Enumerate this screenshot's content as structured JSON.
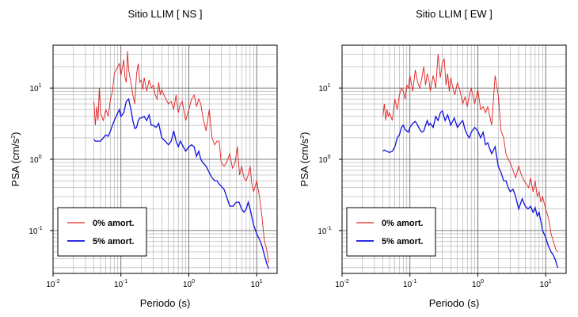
{
  "chart_data": [
    {
      "type": "line",
      "title": "Sitio LLIM [ NS ]",
      "xlabel": "Periodo (s)",
      "ylabel_base": "PSA (cm/s",
      "ylabel_exp": "2",
      "ylabel_close": ")",
      "x_scale": "log",
      "y_scale": "log",
      "xlim": [
        0.01,
        20
      ],
      "ylim": [
        0.025,
        40
      ],
      "grid": true,
      "legend_position": "bottom-left",
      "x_ticks": [
        {
          "base": "10",
          "exp": "-2",
          "value": 0.01
        },
        {
          "base": "10",
          "exp": "-1",
          "value": 0.1
        },
        {
          "base": "10",
          "exp": "0",
          "value": 1
        },
        {
          "base": "10",
          "exp": "1",
          "value": 10
        }
      ],
      "y_ticks": [
        {
          "base": "10",
          "exp": "-1",
          "value": 0.1
        },
        {
          "base": "10",
          "exp": "0",
          "value": 1
        },
        {
          "base": "10",
          "exp": "1",
          "value": 10
        }
      ],
      "series": [
        {
          "name": "0% amort.",
          "color": "#e02020",
          "x": [
            0.04,
            0.042,
            0.044,
            0.046,
            0.048,
            0.05,
            0.055,
            0.06,
            0.065,
            0.07,
            0.075,
            0.08,
            0.085,
            0.09,
            0.095,
            0.1,
            0.105,
            0.11,
            0.115,
            0.12,
            0.125,
            0.13,
            0.14,
            0.15,
            0.16,
            0.17,
            0.18,
            0.19,
            0.2,
            0.21,
            0.22,
            0.24,
            0.26,
            0.28,
            0.3,
            0.32,
            0.34,
            0.36,
            0.38,
            0.4,
            0.43,
            0.46,
            0.5,
            0.55,
            0.6,
            0.65,
            0.7,
            0.75,
            0.8,
            0.9,
            1.0,
            1.1,
            1.2,
            1.3,
            1.4,
            1.5,
            1.6,
            1.8,
            2.0,
            2.2,
            2.4,
            2.6,
            2.8,
            3.0,
            3.3,
            3.6,
            4.0,
            4.4,
            4.8,
            5.2,
            5.6,
            6.0,
            6.5,
            7.0,
            7.5,
            8.0,
            8.5,
            9.0,
            10,
            11,
            12,
            13,
            14,
            15
          ],
          "y": [
            6.5,
            3.0,
            5.5,
            3.5,
            10,
            4.5,
            3.5,
            5,
            4,
            7,
            9,
            16,
            18,
            20,
            22,
            15,
            19,
            25,
            14,
            12,
            33,
            18,
            12,
            8,
            6,
            16,
            22,
            12,
            13,
            9.5,
            14,
            9,
            13,
            10,
            11,
            8,
            7,
            12,
            8,
            9.5,
            8,
            7,
            6,
            6.5,
            5,
            8,
            4.5,
            6,
            6.5,
            3.5,
            5,
            7,
            8,
            5.5,
            7,
            6,
            4,
            2.5,
            5,
            2,
            1.6,
            1.8,
            1.8,
            0.9,
            0.8,
            0.9,
            1.2,
            0.75,
            0.9,
            1.5,
            0.6,
            0.8,
            0.55,
            0.5,
            0.6,
            0.8,
            0.45,
            0.35,
            0.5,
            0.3,
            0.15,
            0.07,
            0.055,
            0.035
          ]
        },
        {
          "name": "5% amort.",
          "color": "#1010e0",
          "x": [
            0.04,
            0.042,
            0.045,
            0.05,
            0.055,
            0.06,
            0.065,
            0.07,
            0.075,
            0.08,
            0.085,
            0.09,
            0.095,
            0.1,
            0.11,
            0.12,
            0.13,
            0.14,
            0.15,
            0.16,
            0.17,
            0.18,
            0.19,
            0.2,
            0.22,
            0.24,
            0.26,
            0.28,
            0.3,
            0.33,
            0.36,
            0.4,
            0.45,
            0.5,
            0.55,
            0.6,
            0.65,
            0.7,
            0.75,
            0.8,
            0.9,
            1.0,
            1.1,
            1.2,
            1.3,
            1.4,
            1.5,
            1.6,
            1.8,
            2.0,
            2.2,
            2.4,
            2.6,
            2.8,
            3.0,
            3.3,
            3.6,
            4.0,
            4.5,
            5.0,
            5.5,
            6.0,
            6.5,
            7.0,
            7.5,
            8.0,
            9.0,
            10,
            11,
            12,
            13,
            14,
            15
          ],
          "y": [
            1.9,
            1.8,
            1.8,
            1.8,
            2.0,
            2.2,
            2.1,
            2.5,
            3.0,
            3.5,
            4.0,
            4.5,
            5.0,
            4.0,
            4.5,
            6.5,
            7.0,
            5.0,
            3.5,
            2.7,
            2.8,
            3.5,
            3.8,
            3.8,
            4.0,
            3.5,
            4.2,
            3.0,
            3.0,
            2.8,
            3.2,
            2.0,
            1.8,
            1.6,
            1.8,
            2.5,
            1.8,
            1.5,
            1.8,
            1.6,
            1.3,
            1.5,
            1.6,
            1.5,
            1.1,
            1.3,
            1.0,
            0.9,
            0.8,
            0.65,
            0.55,
            0.5,
            0.5,
            0.45,
            0.42,
            0.38,
            0.3,
            0.22,
            0.22,
            0.25,
            0.25,
            0.2,
            0.18,
            0.2,
            0.25,
            0.2,
            0.12,
            0.09,
            0.075,
            0.06,
            0.045,
            0.035,
            0.029
          ]
        }
      ]
    },
    {
      "type": "line",
      "title": "Sitio LLIM [ EW ]",
      "xlabel": "Periodo (s)",
      "ylabel_base": "PSA (cm/s",
      "ylabel_exp": "2",
      "ylabel_close": ")",
      "x_scale": "log",
      "y_scale": "log",
      "xlim": [
        0.01,
        20
      ],
      "ylim": [
        0.025,
        40
      ],
      "grid": true,
      "legend_position": "bottom-left",
      "x_ticks": [
        {
          "base": "10",
          "exp": "-2",
          "value": 0.01
        },
        {
          "base": "10",
          "exp": "-1",
          "value": 0.1
        },
        {
          "base": "10",
          "exp": "0",
          "value": 1
        },
        {
          "base": "10",
          "exp": "1",
          "value": 10
        }
      ],
      "y_ticks": [
        {
          "base": "10",
          "exp": "-1",
          "value": 0.1
        },
        {
          "base": "10",
          "exp": "0",
          "value": 1
        },
        {
          "base": "10",
          "exp": "1",
          "value": 10
        }
      ],
      "series": [
        {
          "name": "0% amort.",
          "color": "#e02020",
          "x": [
            0.04,
            0.042,
            0.044,
            0.046,
            0.048,
            0.05,
            0.055,
            0.06,
            0.065,
            0.07,
            0.075,
            0.08,
            0.085,
            0.09,
            0.095,
            0.1,
            0.11,
            0.12,
            0.13,
            0.14,
            0.15,
            0.16,
            0.17,
            0.18,
            0.19,
            0.2,
            0.22,
            0.24,
            0.26,
            0.28,
            0.3,
            0.32,
            0.34,
            0.36,
            0.38,
            0.4,
            0.43,
            0.46,
            0.5,
            0.55,
            0.6,
            0.65,
            0.7,
            0.75,
            0.8,
            0.9,
            1.0,
            1.1,
            1.2,
            1.3,
            1.4,
            1.5,
            1.6,
            1.8,
            2.0,
            2.2,
            2.4,
            2.6,
            2.8,
            3.0,
            3.3,
            3.6,
            4.0,
            4.4,
            4.8,
            5.2,
            5.6,
            6.0,
            6.5,
            7.0,
            7.5,
            8.0,
            8.5,
            9.0,
            10,
            11,
            12,
            13,
            14,
            15
          ],
          "y": [
            4.0,
            6.0,
            3.5,
            5.0,
            4.0,
            4.5,
            3.5,
            7.0,
            5.0,
            8.0,
            10,
            9.0,
            7.0,
            11,
            10,
            15,
            9.0,
            18,
            12,
            10,
            14,
            20,
            11,
            16,
            13,
            9.0,
            15,
            10,
            30,
            14,
            22,
            26,
            11,
            16,
            9.0,
            14,
            10,
            8.0,
            12,
            9.0,
            6.0,
            7.5,
            5.5,
            8.0,
            10,
            6.0,
            9.5,
            5.0,
            5.5,
            4.5,
            5.5,
            4.0,
            3.0,
            15,
            8.0,
            2.5,
            2.0,
            1.2,
            1.0,
            0.9,
            0.7,
            0.55,
            0.8,
            0.6,
            0.5,
            0.45,
            0.4,
            0.55,
            0.35,
            0.5,
            0.3,
            0.35,
            0.25,
            0.3,
            0.2,
            0.15,
            0.09,
            0.07,
            0.055,
            0.05
          ]
        },
        {
          "name": "5% amort.",
          "color": "#1010e0",
          "x": [
            0.04,
            0.042,
            0.045,
            0.05,
            0.055,
            0.06,
            0.065,
            0.07,
            0.075,
            0.08,
            0.085,
            0.09,
            0.095,
            0.1,
            0.11,
            0.12,
            0.13,
            0.14,
            0.15,
            0.16,
            0.17,
            0.18,
            0.19,
            0.2,
            0.22,
            0.24,
            0.26,
            0.28,
            0.3,
            0.33,
            0.36,
            0.4,
            0.45,
            0.5,
            0.55,
            0.6,
            0.65,
            0.7,
            0.75,
            0.8,
            0.9,
            1.0,
            1.1,
            1.2,
            1.3,
            1.4,
            1.5,
            1.6,
            1.8,
            2.0,
            2.2,
            2.4,
            2.6,
            2.8,
            3.0,
            3.3,
            3.6,
            4.0,
            4.5,
            5.0,
            5.5,
            6.0,
            6.5,
            7.0,
            7.5,
            8.0,
            9.0,
            10,
            11,
            12,
            13,
            14,
            15
          ],
          "y": [
            1.3,
            1.35,
            1.3,
            1.25,
            1.3,
            1.5,
            2.0,
            2.2,
            2.8,
            3.0,
            2.6,
            2.5,
            2.4,
            2.8,
            3.2,
            3.4,
            3.0,
            2.6,
            2.4,
            2.5,
            3.0,
            3.5,
            3.0,
            3.2,
            2.8,
            4.0,
            3.5,
            4.5,
            4.8,
            3.5,
            4.2,
            3.0,
            3.8,
            2.8,
            3.2,
            3.5,
            2.6,
            2.2,
            2.0,
            2.4,
            2.8,
            2.5,
            2.0,
            2.4,
            1.6,
            1.7,
            1.4,
            1.2,
            1.5,
            0.8,
            0.65,
            0.5,
            0.5,
            0.4,
            0.35,
            0.38,
            0.3,
            0.2,
            0.28,
            0.22,
            0.2,
            0.22,
            0.18,
            0.21,
            0.16,
            0.18,
            0.1,
            0.08,
            0.06,
            0.05,
            0.045,
            0.038,
            0.03
          ]
        }
      ]
    }
  ]
}
